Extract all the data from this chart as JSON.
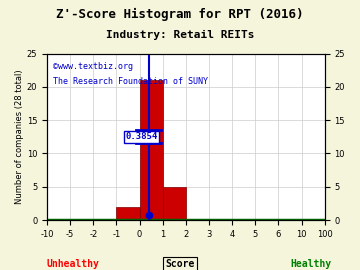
{
  "title": "Z'-Score Histogram for RPT (2016)",
  "subtitle": "Industry: Retail REITs",
  "watermark_line1": "©www.textbiz.org",
  "watermark_line2": "The Research Foundation of SUNY",
  "ylabel_left": "Number of companies (28 total)",
  "xlabel": "Score",
  "xlabel_unhealthy": "Unhealthy",
  "xlabel_healthy": "Healthy",
  "tick_labels": [
    "-10",
    "-5",
    "-2",
    "-1",
    "0",
    "1",
    "2",
    "3",
    "4",
    "5",
    "6",
    "10",
    "100"
  ],
  "bar_heights": [
    0,
    0,
    0,
    2,
    21,
    5,
    0,
    0,
    0,
    0,
    0,
    0
  ],
  "bar_color": "#cc0000",
  "bar_edgecolor": "#800000",
  "marker_value_idx": 4.3854,
  "marker_label": "0.3854",
  "marker_color": "#0000cc",
  "grid_color": "#cccccc",
  "background_color": "#f5f5dc",
  "plot_bg_color": "#ffffff",
  "ylim": [
    0,
    25
  ],
  "yticks": [
    0,
    5,
    10,
    15,
    20,
    25
  ],
  "title_fontsize": 9,
  "subtitle_fontsize": 8,
  "watermark_fontsize": 6,
  "tick_fontsize": 6,
  "ylabel_fontsize": 6,
  "green_line_color": "#006600",
  "unhealthy_split_idx": 4
}
